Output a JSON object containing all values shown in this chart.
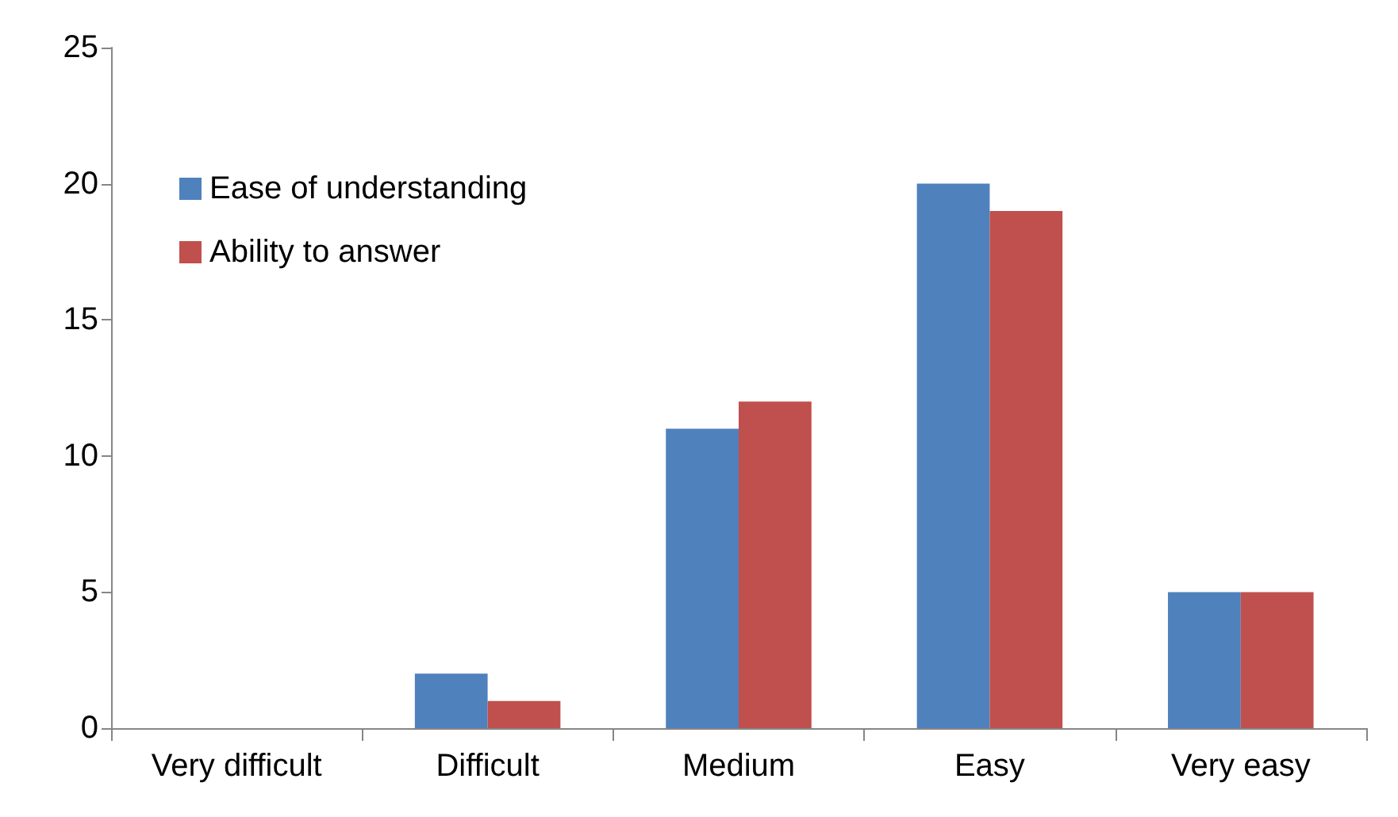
{
  "chart_data": {
    "type": "bar",
    "categories": [
      "Very difficult",
      "Difficult",
      "Medium",
      "Easy",
      "Very easy"
    ],
    "series": [
      {
        "name": "Ease of understanding",
        "color": "#4f81bd",
        "values": [
          0,
          2,
          11,
          20,
          5
        ]
      },
      {
        "name": "Ability to answer",
        "color": "#c0504d",
        "values": [
          0,
          1,
          12,
          19,
          5
        ]
      }
    ],
    "ylim": [
      0,
      25
    ],
    "yticks": [
      0,
      5,
      10,
      15,
      20,
      25
    ],
    "grid": false,
    "legend": "top left"
  }
}
